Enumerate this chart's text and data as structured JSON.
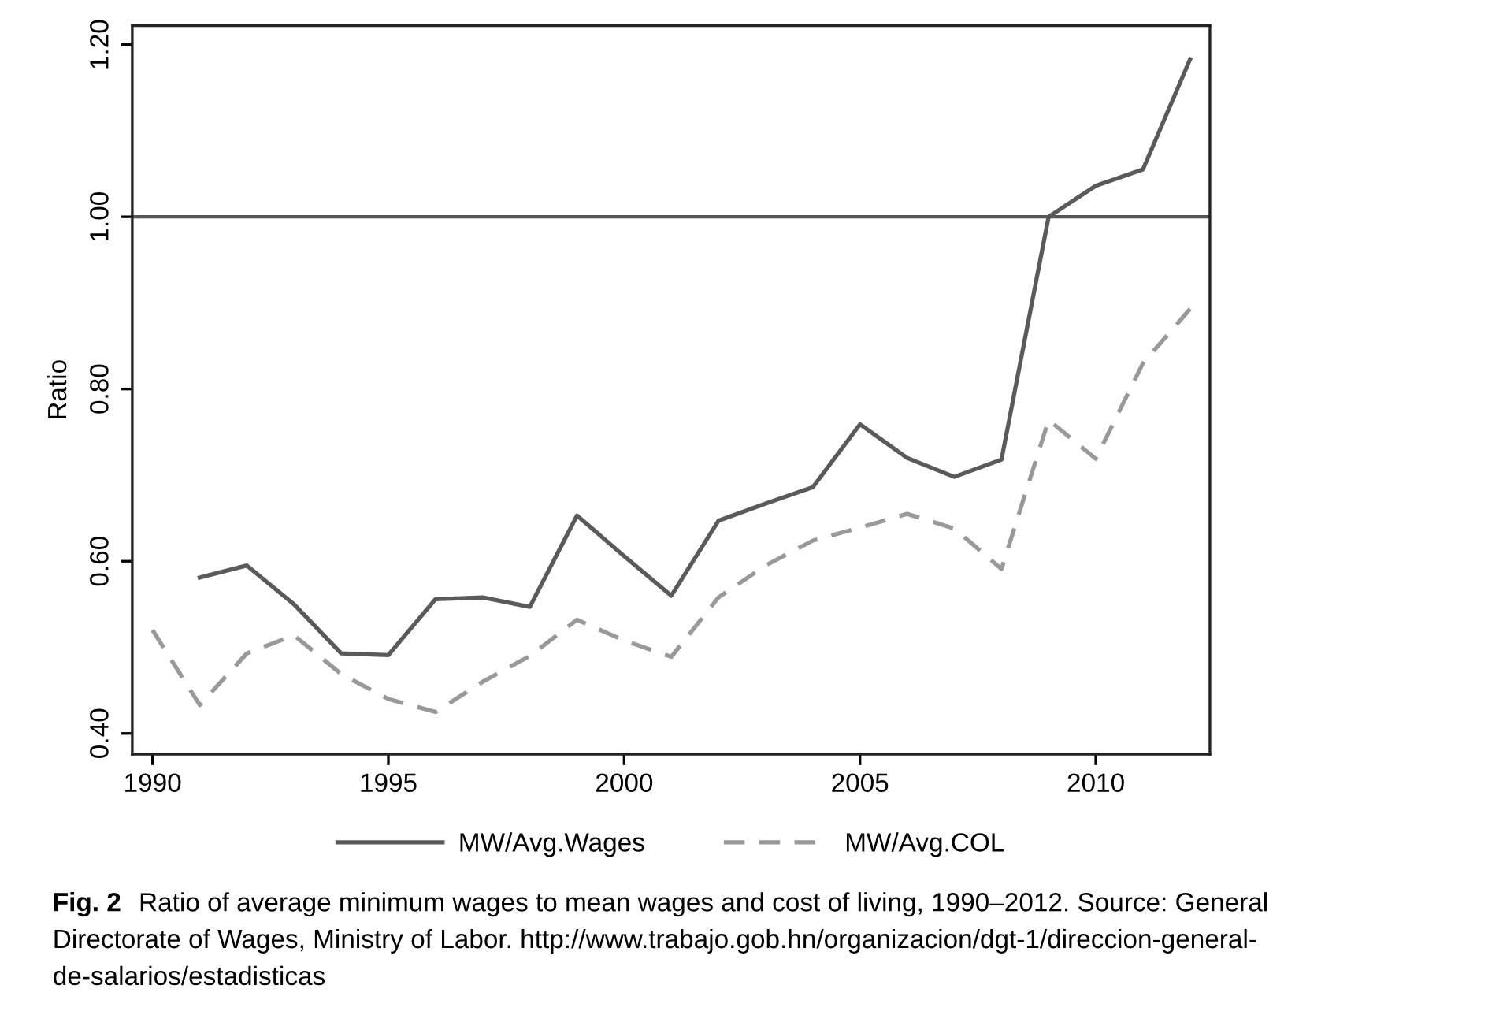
{
  "chart_data": {
    "type": "line",
    "ylabel": "Ratio",
    "x": [
      1990,
      1991,
      1992,
      1993,
      1994,
      1995,
      1996,
      1997,
      1998,
      1999,
      2000,
      2001,
      2002,
      2003,
      2004,
      2005,
      2006,
      2007,
      2008,
      2009,
      2010,
      2011,
      2012
    ],
    "series": [
      {
        "name": "MW/Avg.Wages",
        "color": "#5a5a5a",
        "line_style": "solid",
        "values": [
          null,
          0.581,
          0.595,
          0.55,
          0.493,
          0.491,
          0.556,
          0.558,
          0.547,
          0.653,
          0.606,
          0.56,
          0.647,
          0.667,
          0.686,
          0.759,
          0.72,
          0.698,
          0.718,
          1.0,
          1.036,
          1.055,
          1.183
        ]
      },
      {
        "name": "MW/Avg.COL",
        "color": "#999999",
        "line_style": "dashed",
        "values": [
          0.52,
          0.433,
          0.493,
          0.514,
          0.469,
          0.44,
          0.425,
          0.46,
          0.49,
          0.532,
          0.508,
          0.489,
          0.558,
          0.595,
          0.624,
          0.639,
          0.655,
          0.638,
          0.591,
          0.764,
          0.719,
          0.83,
          0.893
        ]
      }
    ],
    "xlim": [
      1989.57,
      2012.42
    ],
    "xticks": [
      1990,
      1995,
      2000,
      2005,
      2010
    ],
    "ylim": [
      0.376,
      1.222
    ],
    "yticks": [
      {
        "value": 0.4,
        "label": "0.40"
      },
      {
        "value": 0.6,
        "label": "0.60"
      },
      {
        "value": 0.8,
        "label": "0.80"
      },
      {
        "value": 1.0,
        "label": "1.00"
      },
      {
        "value": 1.2,
        "label": "1.20"
      }
    ],
    "ref_lines": [
      {
        "axis": "y",
        "value": 1.0,
        "label": null,
        "color": "#555555",
        "line_style": "solid"
      }
    ],
    "grid": false,
    "legend": "bottom",
    "marker": "none",
    "annotations": [
      "Fig. 2",
      "Ratio of average minimum wages to mean wages and cost of living, 1990–2012. Source: General\nDirectorate of Wages, Ministry of Labor. http://www.trabajo.gob.hn/organizacion/dgt-1/direccion-general-\nde-salarios/estadisticas"
    ]
  }
}
